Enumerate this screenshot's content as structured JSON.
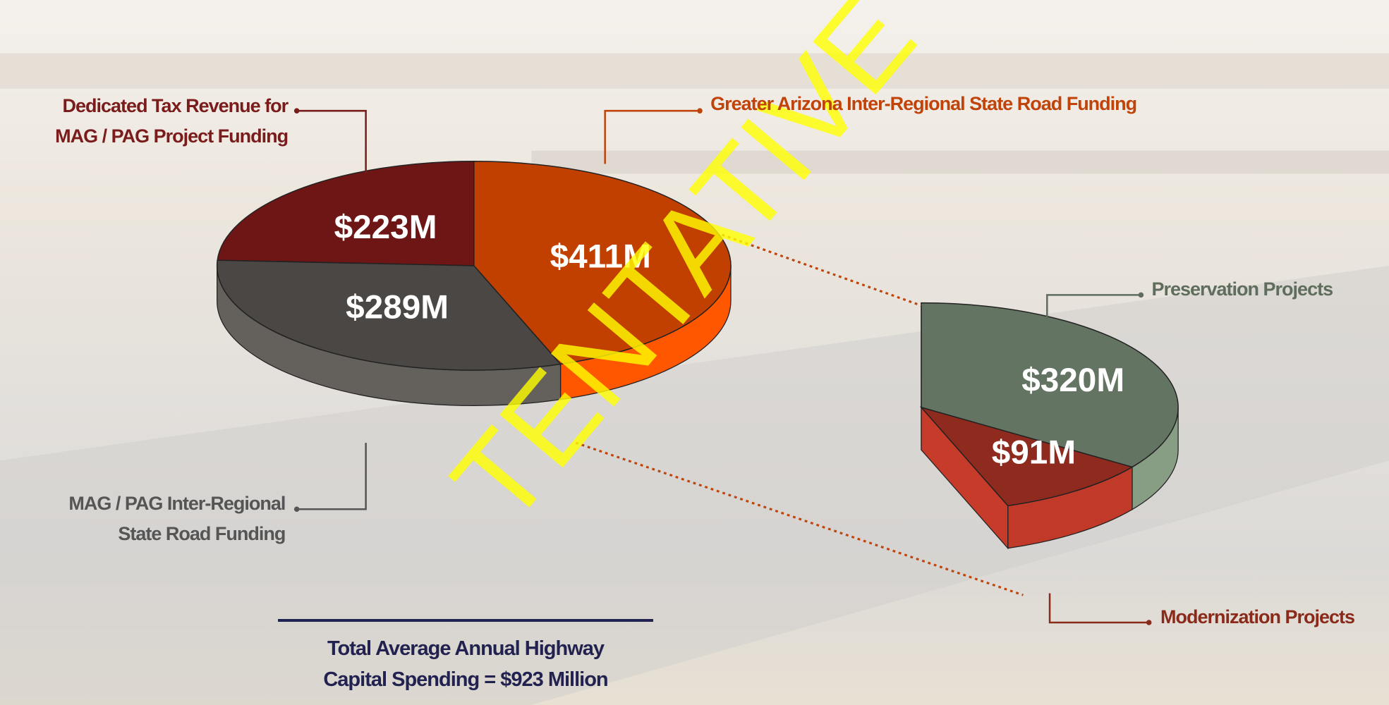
{
  "chart_data": [
    {
      "type": "pie",
      "categories": [
        "Dedicated Tax Revenue for MAG / PAG Project Funding",
        "Greater Arizona Inter-Regional State Road Funding",
        "MAG / PAG Inter-Regional State Road Funding"
      ],
      "values": [
        223,
        411,
        289
      ],
      "value_labels": [
        "$223M",
        "$411M",
        "$289M"
      ],
      "colors": [
        "#6e1616",
        "#c14000",
        "#4a4744"
      ]
    },
    {
      "type": "pie",
      "categories": [
        "Preservation Projects",
        "Modernization Projects"
      ],
      "values": [
        320,
        91
      ],
      "value_labels": [
        "$320M",
        "$91M"
      ],
      "colors": [
        "#647462",
        "#8e2a1e"
      ]
    }
  ],
  "annotations": {
    "total": "Total Average Annual Highway Capital Spending = $923 Million",
    "watermark": "TENTATIVE"
  }
}
